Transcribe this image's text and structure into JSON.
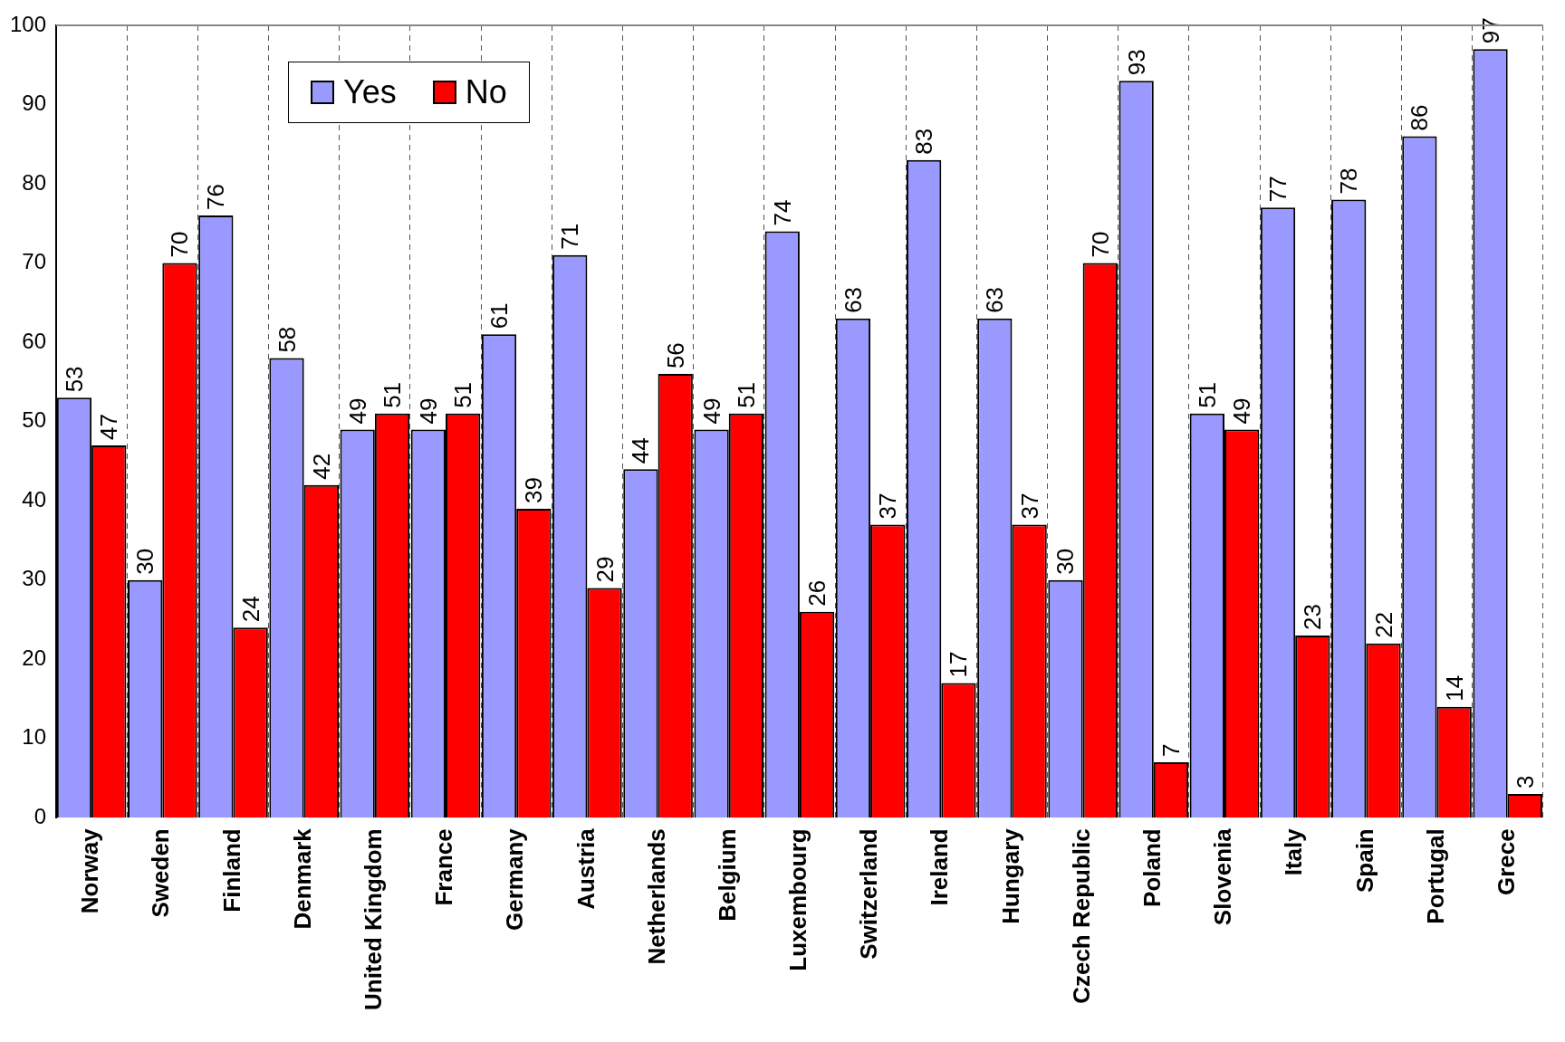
{
  "chart_data": {
    "type": "bar",
    "categories": [
      "Norway",
      "Sweden",
      "Finland",
      "Denmark",
      "United Kingdom",
      "France",
      "Germany",
      "Austria",
      "Netherlands",
      "Belgium",
      "Luxembourg",
      "Switzerland",
      "Ireland",
      "Hungary",
      "Czech Republic",
      "Poland",
      "Slovenia",
      "Italy",
      "Spain",
      "Portugal",
      "Grece"
    ],
    "series": [
      {
        "name": "Yes",
        "color": "#9999ff",
        "values": [
          53,
          30,
          76,
          58,
          49,
          49,
          61,
          71,
          44,
          49,
          74,
          63,
          83,
          63,
          30,
          93,
          51,
          77,
          78,
          86,
          97
        ]
      },
      {
        "name": "No",
        "color": "#ff0000",
        "values": [
          47,
          70,
          24,
          42,
          51,
          51,
          39,
          29,
          56,
          51,
          26,
          37,
          17,
          37,
          70,
          7,
          49,
          23,
          22,
          14,
          3
        ]
      }
    ],
    "ylim": [
      0,
      100
    ],
    "yticks": [
      0,
      10,
      20,
      30,
      40,
      50,
      60,
      70,
      80,
      90,
      100
    ],
    "grid": "x",
    "legend": "top left",
    "data_labels": true
  }
}
